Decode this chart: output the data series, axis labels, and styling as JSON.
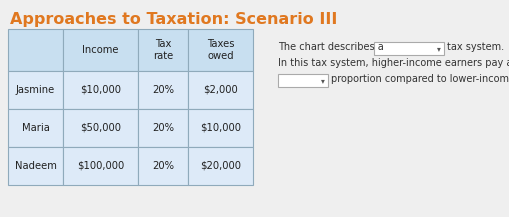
{
  "title": "Approaches to Taxation: Scenario III",
  "title_color": "#e07820",
  "title_fontsize": 11.5,
  "background_color": "#efefef",
  "header_color": "#c8dff0",
  "row_color": "#ddeaf8",
  "border_color": "#8faabb",
  "col_headers": [
    "",
    "Income",
    "Tax\nrate",
    "Taxes\nowed"
  ],
  "rows": [
    [
      "Jasmine",
      "$10,000",
      "20%",
      "$2,000"
    ],
    [
      "Maria",
      "$50,000",
      "20%",
      "$10,000"
    ],
    [
      "Nadeem",
      "$100,000",
      "20%",
      "$20,000"
    ]
  ],
  "side_text_line1_pre": "The chart describes a",
  "side_text_line1_post": "tax system.",
  "side_text_line2": "In this tax system, higher-income earners pay a(n)",
  "side_text_line3_post": "proportion compared to lower-income earners.",
  "text_color": "#333333",
  "text_fontsize": 7.0,
  "dropdown_color": "#ffffff",
  "dropdown_border": "#aaaaaa"
}
